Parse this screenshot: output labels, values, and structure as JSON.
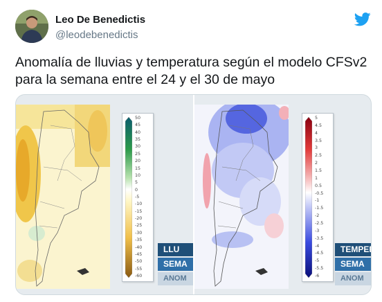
{
  "author": {
    "name": "Leo De Benedictis",
    "handle": "@leodebenedictis",
    "avatar_icon": "profile-photo"
  },
  "platform_icon": "twitter-bird-icon",
  "brand_color": "#1da1f2",
  "tweet": {
    "line1": "Anomalía de lluvias y temperatura según el modelo CFSv2",
    "line2": "para la semana entre el 24 y el 30 de mayo"
  },
  "media": {
    "rain_panel": {
      "scale": [
        "50",
        "45",
        "40",
        "35",
        "30",
        "25",
        "20",
        "15",
        "10",
        "5",
        "0",
        "-5",
        "-10",
        "-15",
        "-20",
        "-25",
        "-30",
        "-35",
        "-40",
        "-45",
        "-50",
        "-55",
        "-60"
      ],
      "labels": [
        "LLU",
        "SEMA",
        "ANOM"
      ]
    },
    "temp_panel": {
      "scale": [
        "5",
        "4.5",
        "4",
        "3.5",
        "3",
        "2.5",
        "2",
        "1.5",
        "1",
        "0.5",
        "-0.5",
        "-1",
        "-1.5",
        "-2",
        "-2.5",
        "-3",
        "-3.5",
        "-4",
        "-4.5",
        "-5",
        "-5.5",
        "-6"
      ],
      "labels": [
        "TEMPER",
        "SEMA",
        "ANOM"
      ]
    }
  }
}
